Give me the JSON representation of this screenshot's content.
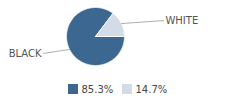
{
  "chart_data": {
    "type": "pie",
    "categories": [
      "BLACK",
      "WHITE"
    ],
    "values": [
      85.3,
      14.7
    ],
    "value_labels": [
      "85.3%",
      "14.7%"
    ],
    "colors": [
      "#3b6790",
      "#d3dce6"
    ],
    "legend": "bottom"
  }
}
